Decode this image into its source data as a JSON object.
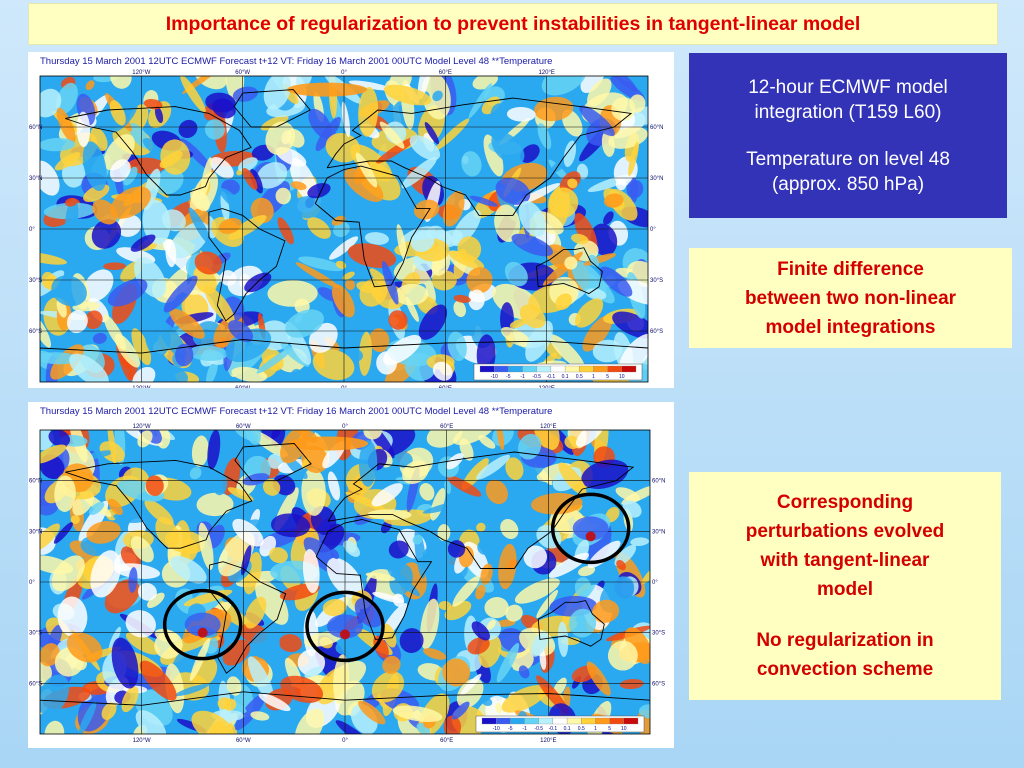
{
  "title": "Importance of regularization to prevent instabilities in tangent-linear model",
  "maps": [
    {
      "id": "top",
      "header": "Thursday 15 March 2001 12UTC ECMWF  Forecast t+12 VT: Friday 16 March 2001 00UTC Model Level 48 **Temperature",
      "lon_ticks": [
        "120°W",
        "60°W",
        "0°",
        "60°E",
        "120°E"
      ],
      "lat_ticks": [
        "60°N",
        "30°N",
        "0°",
        "30°S",
        "60°S"
      ],
      "legend": [
        "-10",
        "-5",
        "-1",
        "-0.5",
        "-0.1",
        "0.1",
        "0.5",
        "1",
        "5",
        "10"
      ],
      "highlight_circles": []
    },
    {
      "id": "bottom",
      "header": "Thursday 15 March 2001 12UTC ECMWF  Forecast t+12 VT: Friday 16 March 2001 00UTC Model Level 48 **Temperature",
      "lon_ticks": [
        "120°W",
        "60°W",
        "0°",
        "60°E",
        "120°E"
      ],
      "lat_ticks": [
        "60°N",
        "30°N",
        "0°",
        "30°S",
        "60°S"
      ],
      "legend": [
        "-10",
        "-5",
        "-1",
        "-0.5",
        "-0.1",
        "0.1",
        "0.5",
        "1",
        "5",
        "10"
      ],
      "highlight_circles": [
        {
          "lon": -84,
          "lat": -30
        },
        {
          "lon": 0,
          "lat": -31
        },
        {
          "lon": 145,
          "lat": 27
        }
      ]
    }
  ],
  "legend_colors": [
    "#1a10c8",
    "#3a5cf0",
    "#2aa8f0",
    "#66d4f4",
    "#b8f0fc",
    "#ffffff",
    "#fff8a8",
    "#ffd23a",
    "#ff9a1a",
    "#f24a10",
    "#c80a0a"
  ],
  "info_box": {
    "line1": "12-hour ECMWF model",
    "line2": "integration (T159 L60)",
    "line3": "Temperature on level 48",
    "line4": "(approx. 850 hPa)"
  },
  "finite_box": {
    "line1": "Finite difference",
    "line2": "between two non-linear",
    "line3": "model integrations"
  },
  "tl_box": {
    "line1": "Corresponding",
    "line2": "perturbations evolved",
    "line3": "with tangent-linear",
    "line4": "model",
    "line5": "No regularization in",
    "line6": "convection scheme"
  }
}
